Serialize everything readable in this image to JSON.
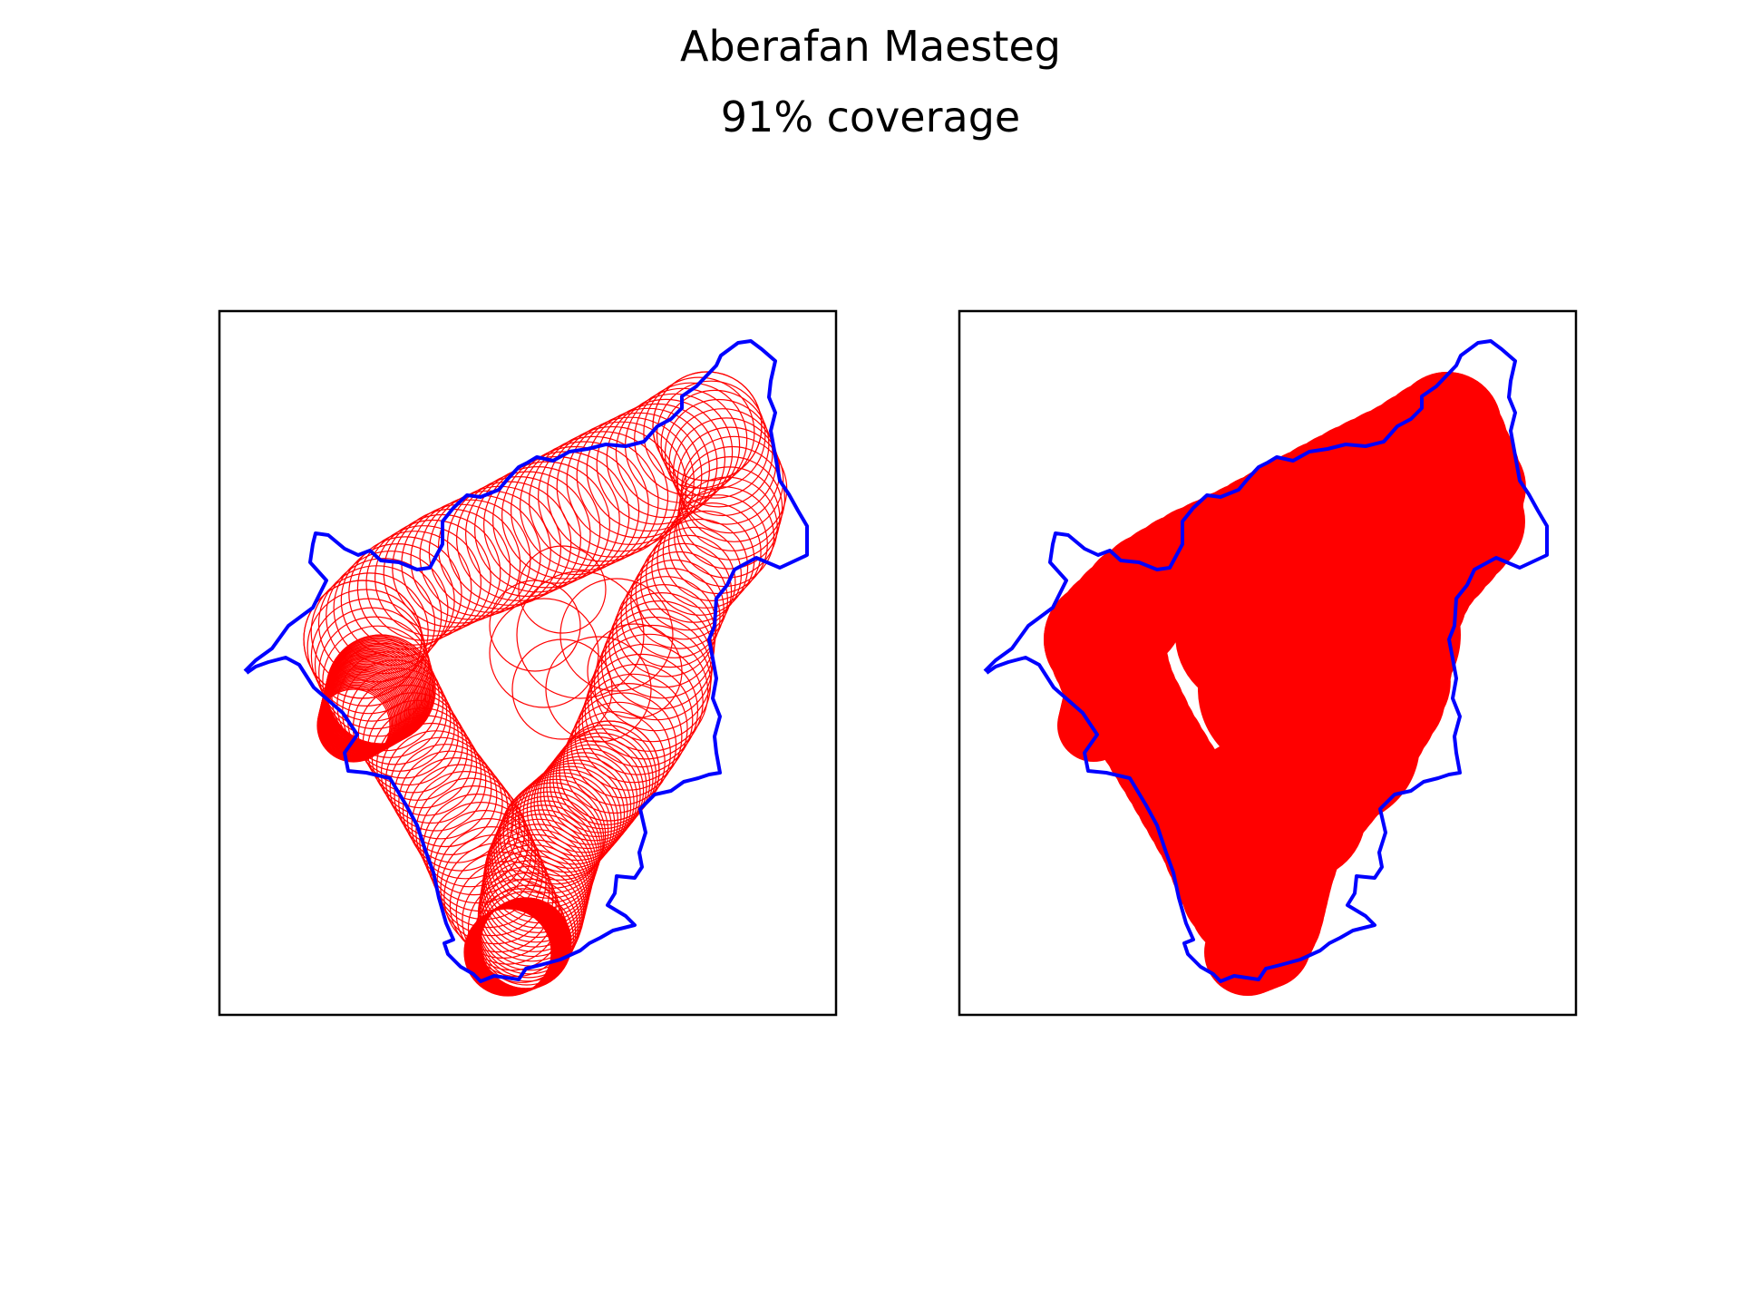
{
  "figure": {
    "title": "Aberafan Maesteg",
    "subtitle": "91% coverage"
  },
  "colors": {
    "boundary": "#0000ff",
    "circles": "#ff0000",
    "axes_frame": "#000000",
    "background": "#ffffff"
  },
  "panels": [
    {
      "name": "circles-outline-panel",
      "style": "outline"
    },
    {
      "name": "circles-filled-panel",
      "style": "filled"
    }
  ]
}
